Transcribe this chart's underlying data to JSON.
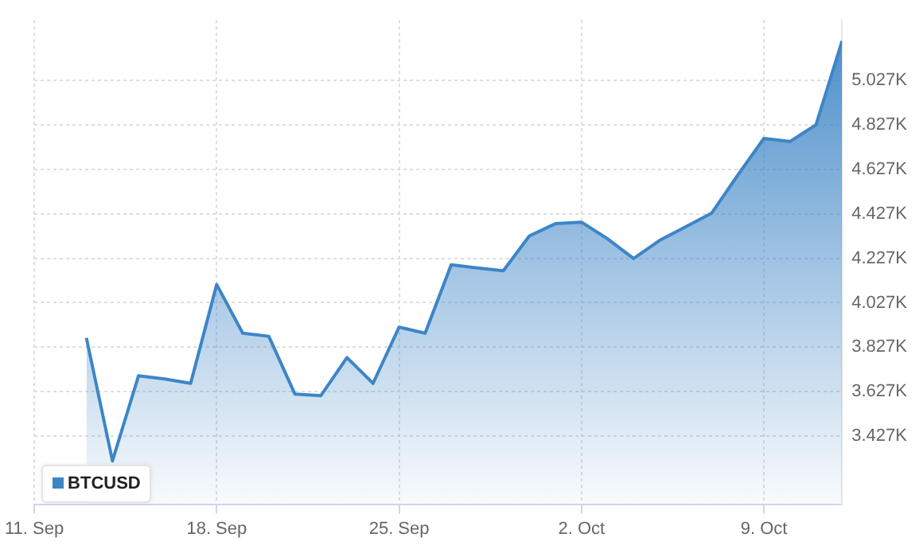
{
  "chart_data": {
    "type": "area",
    "x": [
      "--09-13",
      "--09-14",
      "--09-15",
      "--09-16",
      "--09-17",
      "--09-18",
      "--09-19",
      "--09-20",
      "--09-21",
      "--09-22",
      "--09-23",
      "--09-24",
      "--09-25",
      "--09-26",
      "--09-27",
      "--09-28",
      "--09-29",
      "--09-30",
      "--10-01",
      "--10-02",
      "--10-03",
      "--10-04",
      "--10-05",
      "--10-06",
      "--10-07",
      "--10-08",
      "--10-09",
      "--10-10",
      "--10-11",
      "--10-12"
    ],
    "series": [
      {
        "name": "BTCUSD",
        "color": "#3d85c6",
        "values": [
          3869,
          3315,
          3698,
          3684,
          3664,
          4109,
          3890,
          3876,
          3616,
          3609,
          3780,
          3664,
          3917,
          3890,
          4198,
          4184,
          4171,
          4328,
          4383,
          4390,
          4315,
          4226,
          4308,
          4369,
          4431,
          4602,
          4767,
          4753,
          4828,
          5205
        ]
      }
    ],
    "xlim": [
      "--09-11",
      "--10-12"
    ],
    "xticks": [
      {
        "value": "--09-11",
        "label": "11. Sep"
      },
      {
        "value": "--09-18",
        "label": "18. Sep"
      },
      {
        "value": "--09-25",
        "label": "25. Sep"
      },
      {
        "value": "--10-02",
        "label": "2. Oct"
      },
      {
        "value": "--10-09",
        "label": "9. Oct"
      }
    ],
    "ylim": [
      3120,
      5300
    ],
    "yticks": [
      {
        "value": 3427,
        "label": "3.427K"
      },
      {
        "value": 3627,
        "label": "3.627K"
      },
      {
        "value": 3827,
        "label": "3.827K"
      },
      {
        "value": 4027,
        "label": "4.027K"
      },
      {
        "value": 4227,
        "label": "4.227K"
      },
      {
        "value": 4427,
        "label": "4.427K"
      },
      {
        "value": 4627,
        "label": "4.627K"
      },
      {
        "value": 4827,
        "label": "4.827K"
      },
      {
        "value": 5027,
        "label": "5.027K"
      }
    ],
    "grid": true,
    "legend": "bottom left",
    "marker": "none",
    "line_style": "solid"
  }
}
